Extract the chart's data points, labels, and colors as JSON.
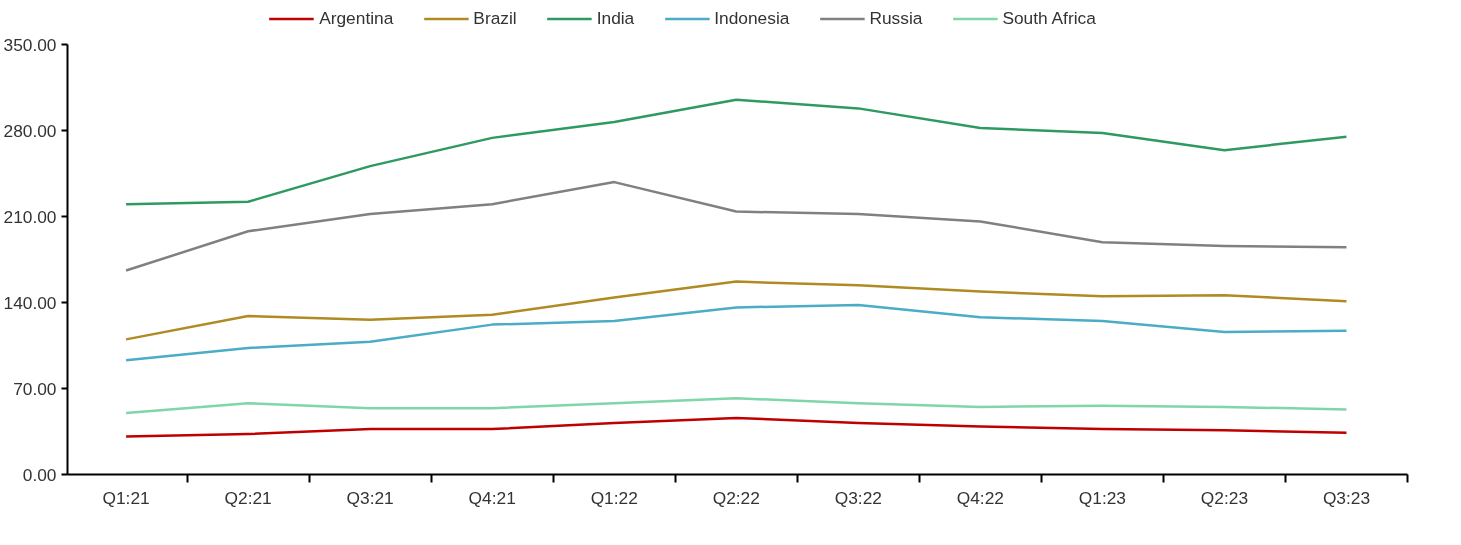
{
  "chart_data": {
    "type": "line",
    "categories": [
      "Q1:21",
      "Q2:21",
      "Q3:21",
      "Q4:21",
      "Q1:22",
      "Q2:22",
      "Q3:22",
      "Q4:22",
      "Q1:23",
      "Q2:23",
      "Q3:23"
    ],
    "series": [
      {
        "name": "Argentina",
        "color": "#c00000",
        "values": [
          31,
          33,
          37,
          37,
          42,
          46,
          42,
          39,
          37,
          36,
          34
        ]
      },
      {
        "name": "Brazil",
        "color": "#b08a22",
        "values": [
          110,
          129,
          126,
          130,
          144,
          157,
          154,
          149,
          145,
          146,
          141
        ]
      },
      {
        "name": "India",
        "color": "#2e9a62",
        "values": [
          220,
          222,
          251,
          274,
          287,
          305,
          298,
          282,
          278,
          264,
          275
        ]
      },
      {
        "name": "Indonesia",
        "color": "#4aacc6",
        "values": [
          93,
          103,
          108,
          122,
          125,
          136,
          138,
          128,
          125,
          116,
          117
        ]
      },
      {
        "name": "Russia",
        "color": "#808080",
        "values": [
          166,
          198,
          212,
          220,
          238,
          214,
          212,
          206,
          189,
          186,
          185
        ]
      },
      {
        "name": "South Africa",
        "color": "#7fd6a8",
        "values": [
          50,
          58,
          54,
          54,
          58,
          62,
          58,
          55,
          56,
          55,
          53
        ]
      }
    ],
    "ylim": [
      0,
      350
    ],
    "yticks": [
      {
        "value": 0,
        "label": "0.00"
      },
      {
        "value": 70,
        "label": "70.00"
      },
      {
        "value": 140,
        "label": "140.00"
      },
      {
        "value": 210,
        "label": "210.00"
      },
      {
        "value": 280,
        "label": "280.00"
      },
      {
        "value": 350,
        "label": "350.00"
      }
    ],
    "grid": false,
    "legend": "top",
    "marker": "none",
    "line_style": "solid"
  }
}
